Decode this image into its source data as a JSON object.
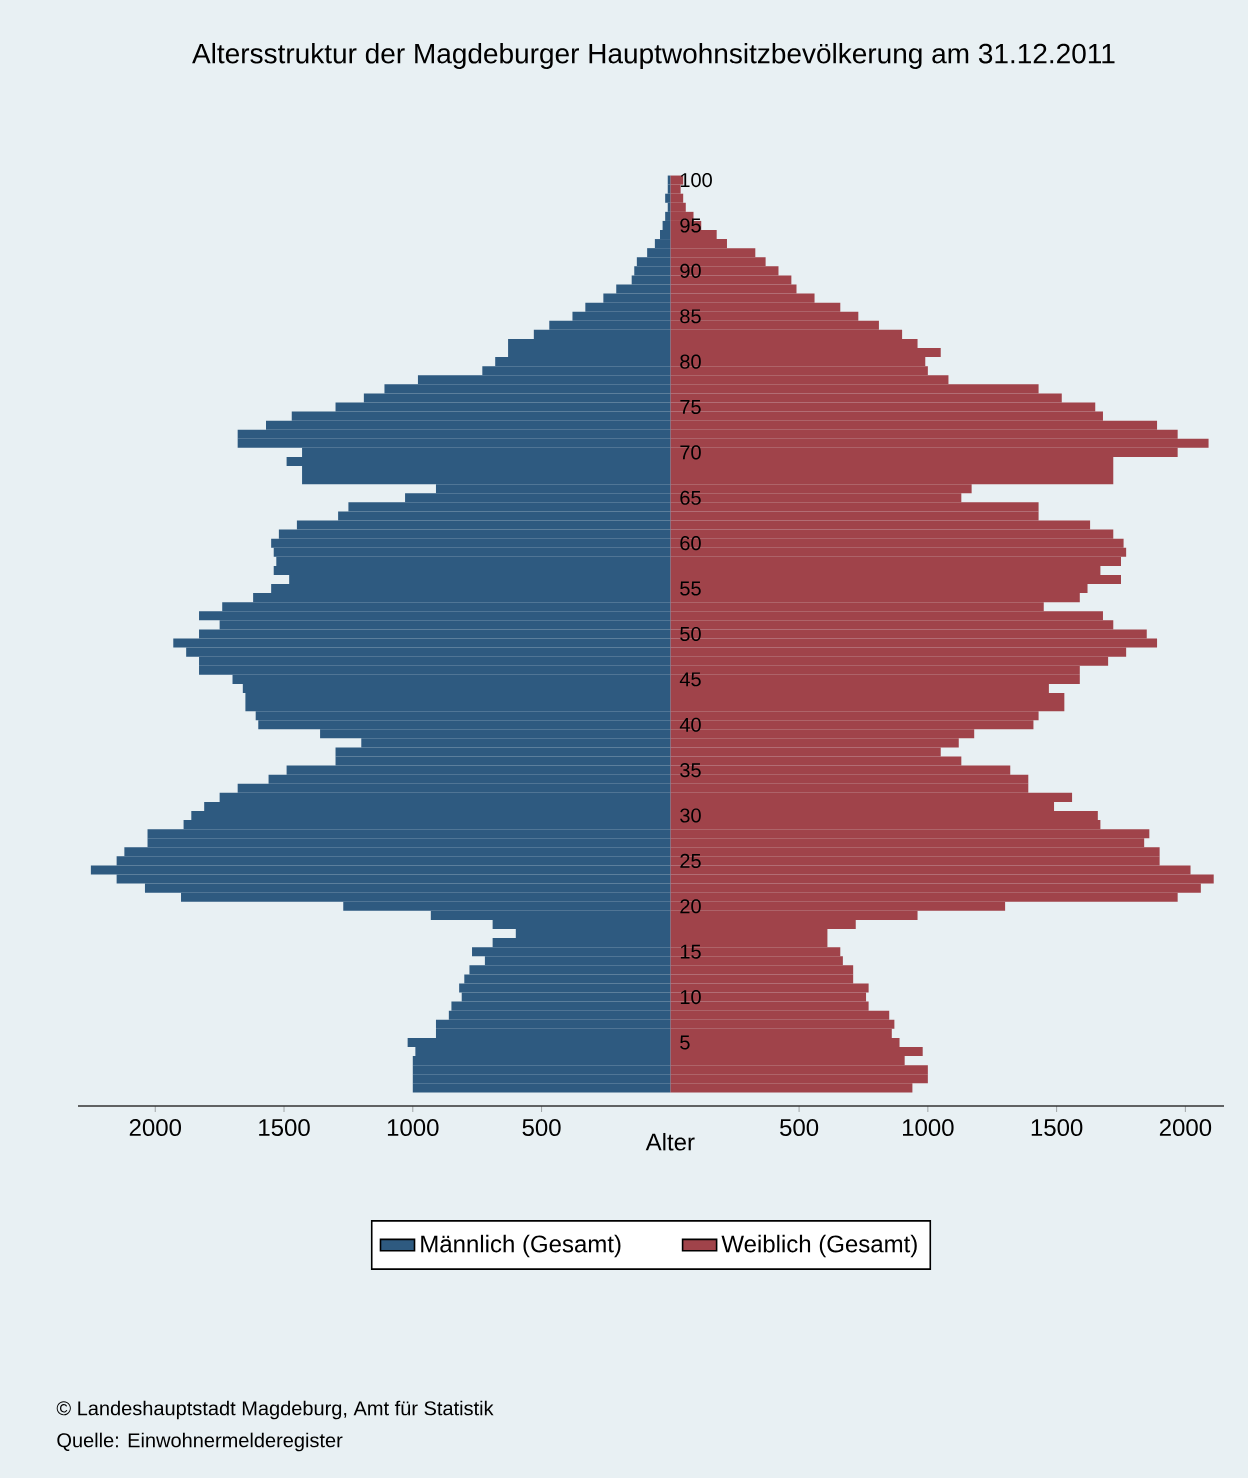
{
  "chart_data": {
    "type": "bar",
    "orientation": "horizontal",
    "title": "Altersstruktur der Magdeburger Hauptwohnsitzbevölkerung am 31.12.2011",
    "xlabel": "Alter",
    "stacked": true,
    "categories": [
      "100",
      null,
      null,
      null,
      null,
      "95",
      null,
      null,
      null,
      null,
      "90",
      null,
      null,
      null,
      null,
      "85",
      null,
      null,
      null,
      null,
      "80",
      null,
      null,
      null,
      null,
      "75",
      null,
      null,
      null,
      null,
      "70",
      null,
      null,
      null,
      null,
      "65",
      null,
      null,
      null,
      null,
      "60",
      null,
      null,
      null,
      null,
      "55",
      null,
      null,
      null,
      null,
      "50",
      null,
      null,
      null,
      null,
      "45",
      null,
      null,
      null,
      null,
      "40",
      null,
      null,
      null,
      null,
      "35",
      null,
      null,
      null,
      null,
      "30",
      null,
      null,
      null,
      null,
      "25",
      null,
      null,
      null,
      null,
      "20",
      null,
      null,
      null,
      null,
      "15",
      null,
      null,
      null,
      null,
      "10",
      null,
      null,
      null,
      null,
      "5",
      null,
      null,
      null,
      null,
      null
    ],
    "series": [
      {
        "name": "Männlich (Gesamt)",
        "color": "#2e5a80",
        "values": [
          -10,
          -10,
          -20,
          -10,
          -20,
          -30,
          -40,
          -60,
          -90,
          -130,
          -140,
          -150,
          -210,
          -260,
          -330,
          -380,
          -470,
          -530,
          -630,
          -630,
          -680,
          -730,
          -980,
          -1110,
          -1190,
          -1300,
          -1470,
          -1570,
          -1680,
          -1680,
          -1430,
          -1490,
          -1430,
          -1430,
          -910,
          -1030,
          -1250,
          -1290,
          -1450,
          -1520,
          -1550,
          -1540,
          -1530,
          -1540,
          -1480,
          -1550,
          -1620,
          -1740,
          -1830,
          -1750,
          -1830,
          -1930,
          -1880,
          -1830,
          -1830,
          -1700,
          -1660,
          -1650,
          -1650,
          -1610,
          -1600,
          -1360,
          -1200,
          -1300,
          -1300,
          -1490,
          -1560,
          -1680,
          -1750,
          -1810,
          -1860,
          -1890,
          -2030,
          -2030,
          -2120,
          -2150,
          -2250,
          -2150,
          -2040,
          -1900,
          -1270,
          -930,
          -690,
          -600,
          -690,
          -770,
          -720,
          -780,
          -800,
          -820,
          -810,
          -850,
          -860,
          -910,
          -910,
          -1020,
          -990,
          -1000,
          -1000,
          -1000,
          -1000
        ]
      },
      {
        "name": "Weiblich (Gesamt)",
        "color": "#a0434a",
        "values": [
          50,
          40,
          50,
          60,
          90,
          120,
          180,
          220,
          330,
          370,
          420,
          470,
          490,
          560,
          660,
          730,
          810,
          900,
          960,
          1050,
          990,
          1000,
          1080,
          1430,
          1520,
          1650,
          1680,
          1890,
          1970,
          2090,
          1970,
          1720,
          1720,
          1720,
          1170,
          1130,
          1430,
          1430,
          1630,
          1720,
          1760,
          1770,
          1750,
          1670,
          1750,
          1620,
          1590,
          1450,
          1680,
          1720,
          1850,
          1890,
          1770,
          1700,
          1590,
          1590,
          1470,
          1530,
          1530,
          1430,
          1410,
          1180,
          1120,
          1050,
          1130,
          1320,
          1390,
          1390,
          1560,
          1490,
          1660,
          1670,
          1860,
          1840,
          1900,
          1900,
          2020,
          2110,
          2060,
          1970,
          1300,
          960,
          720,
          610,
          610,
          660,
          670,
          710,
          710,
          770,
          760,
          770,
          850,
          870,
          860,
          890,
          980,
          910,
          1000,
          1000,
          940
        ]
      }
    ],
    "xlim": [
      -2300,
      2150
    ],
    "xticks": [
      {
        "value": -2000,
        "label": "2000"
      },
      {
        "value": -1500,
        "label": "1500"
      },
      {
        "value": -1000,
        "label": "1000"
      },
      {
        "value": -500,
        "label": "500"
      },
      500,
      1000,
      1500,
      2000
    ],
    "legend": "bottom",
    "annotations": [
      "© Landeshauptstadt Magdeburg, Amt für Statistik",
      "Quelle: Einwohnermelderegister"
    ]
  }
}
